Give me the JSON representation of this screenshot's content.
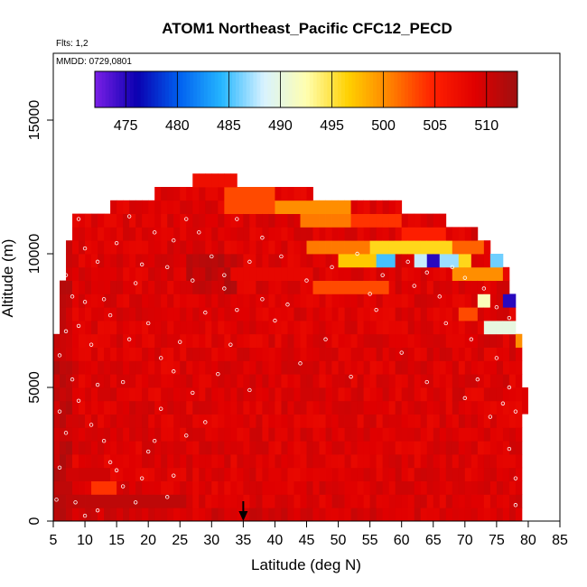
{
  "chart_data": {
    "type": "heatmap",
    "title": "ATOM1 Northeast_Pacific CFC12_PECD",
    "subtitle_flights": "Flts: 1,2",
    "subtitle_dates": "MMDD: 0729,0801",
    "xlabel": "Latitude (deg N)",
    "ylabel": "Altitude (m)",
    "xlim": [
      5,
      85
    ],
    "ylim": [
      0,
      17500
    ],
    "x_ticks": [
      "5",
      "10",
      "15",
      "20",
      "25",
      "30",
      "35",
      "40",
      "45",
      "50",
      "55",
      "60",
      "65",
      "70",
      "75",
      "80",
      "85"
    ],
    "y_ticks": [
      "0",
      "5000",
      "10000",
      "15000"
    ],
    "colorbar": {
      "range": [
        472,
        513
      ],
      "ticks": [
        "475",
        "480",
        "485",
        "490",
        "495",
        "500",
        "505",
        "510"
      ],
      "colors": [
        "#7a1fe6",
        "#0a00b0",
        "#0060f0",
        "#25b6ff",
        "#d8f2ff",
        "#ffffb0",
        "#ffd000",
        "#ff8000",
        "#ff2000",
        "#e00000",
        "#9e1010"
      ]
    },
    "arrow_marker_latitude": 35,
    "base_value": 509,
    "profile": [
      {
        "lat": 5,
        "top": 7000
      },
      {
        "lat": 6,
        "top": 9000
      },
      {
        "lat": 7,
        "top": 10500
      },
      {
        "lat": 7.5,
        "top": 11500
      },
      {
        "lat": 14,
        "top": 12000
      },
      {
        "lat": 20.5,
        "top": 12500
      },
      {
        "lat": 27,
        "top": 13000
      },
      {
        "lat": 32,
        "top": 12700
      },
      {
        "lat": 34,
        "top": 12500
      },
      {
        "lat": 46,
        "top": 12000
      },
      {
        "lat": 60,
        "top": 11500
      },
      {
        "lat": 67,
        "top": 11000
      },
      {
        "lat": 69,
        "top": 10700
      },
      {
        "lat": 72,
        "top": 10300
      },
      {
        "lat": 74,
        "top": 10000
      },
      {
        "lat": 76,
        "top": 9500
      },
      {
        "lat": 77,
        "top": 8500
      },
      {
        "lat": 78,
        "top": 7000
      },
      {
        "lat": 78.5,
        "top": 5000
      },
      {
        "lat": 79,
        "top": 0
      }
    ],
    "anomalies": [
      {
        "lat0": 27,
        "lat1": 34,
        "alt0": 12500,
        "alt1": 13000,
        "value": 507
      },
      {
        "lat0": 32,
        "lat1": 40,
        "alt0": 11500,
        "alt1": 12500,
        "value": 503
      },
      {
        "lat0": 40,
        "lat1": 52,
        "alt0": 11500,
        "alt1": 12000,
        "value": 500
      },
      {
        "lat0": 44,
        "lat1": 52,
        "alt0": 11000,
        "alt1": 11500,
        "value": 501
      },
      {
        "lat0": 52,
        "lat1": 60,
        "alt0": 11000,
        "alt1": 11500,
        "value": 504
      },
      {
        "lat0": 60,
        "lat1": 67,
        "alt0": 10500,
        "alt1": 11000,
        "value": 505
      },
      {
        "lat0": 45,
        "lat1": 55,
        "alt0": 10000,
        "alt1": 10500,
        "value": 501
      },
      {
        "lat0": 55,
        "lat1": 68,
        "alt0": 10000,
        "alt1": 10500,
        "value": 496
      },
      {
        "lat0": 68,
        "lat1": 73,
        "alt0": 10000,
        "alt1": 10500,
        "value": 502
      },
      {
        "lat0": 50,
        "lat1": 56,
        "alt0": 9500,
        "alt1": 10000,
        "value": 497
      },
      {
        "lat0": 56,
        "lat1": 59,
        "alt0": 9500,
        "alt1": 10000,
        "value": 485
      },
      {
        "lat0": 62,
        "lat1": 64,
        "alt0": 9500,
        "alt1": 10000,
        "value": 488
      },
      {
        "lat0": 64,
        "lat1": 66,
        "alt0": 9500,
        "alt1": 10000,
        "value": 475
      },
      {
        "lat0": 66,
        "lat1": 69,
        "alt0": 9500,
        "alt1": 10000,
        "value": 487
      },
      {
        "lat0": 69,
        "lat1": 71,
        "alt0": 9500,
        "alt1": 10000,
        "value": 496
      },
      {
        "lat0": 74,
        "lat1": 76,
        "alt0": 9500,
        "alt1": 10000,
        "value": 486
      },
      {
        "lat0": 68,
        "lat1": 76,
        "alt0": 9000,
        "alt1": 9500,
        "value": 500
      },
      {
        "lat0": 33,
        "lat1": 46,
        "alt0": 9000,
        "alt1": 9500,
        "value": 508
      },
      {
        "lat0": 46,
        "lat1": 58,
        "alt0": 8500,
        "alt1": 9000,
        "value": 503
      },
      {
        "lat0": 72,
        "lat1": 74,
        "alt0": 8000,
        "alt1": 8500,
        "value": 492
      },
      {
        "lat0": 76,
        "lat1": 78,
        "alt0": 8000,
        "alt1": 8500,
        "value": 475
      },
      {
        "lat0": 69,
        "lat1": 72,
        "alt0": 7500,
        "alt1": 8000,
        "value": 503
      },
      {
        "lat0": 73,
        "lat1": 78,
        "alt0": 7000,
        "alt1": 7500,
        "value": 490
      },
      {
        "lat0": 78,
        "lat1": 79,
        "alt0": 6500,
        "alt1": 7000,
        "value": 500
      },
      {
        "lat0": 11,
        "lat1": 15,
        "alt0": 1000,
        "alt1": 1500,
        "value": 504
      },
      {
        "lat0": 9,
        "lat1": 14,
        "alt0": 1500,
        "alt1": 2000,
        "value": 510
      },
      {
        "lat0": 8,
        "lat1": 26,
        "alt0": 500,
        "alt1": 1000,
        "value": 511
      }
    ],
    "sample_points": [
      [
        7,
        9200
      ],
      [
        8,
        8400
      ],
      [
        9,
        11300
      ],
      [
        10,
        10200
      ],
      [
        12,
        9700
      ],
      [
        13,
        8300
      ],
      [
        15,
        10400
      ],
      [
        17,
        11400
      ],
      [
        19,
        9600
      ],
      [
        21,
        10800
      ],
      [
        24,
        10500
      ],
      [
        26,
        11300
      ],
      [
        28,
        10800
      ],
      [
        30,
        9900
      ],
      [
        32,
        9200
      ],
      [
        34,
        11300
      ],
      [
        36,
        9700
      ],
      [
        38,
        10600
      ],
      [
        41,
        9900
      ],
      [
        45,
        9000
      ],
      [
        49,
        9500
      ],
      [
        53,
        10000
      ],
      [
        57,
        9200
      ],
      [
        61,
        9700
      ],
      [
        64,
        9300
      ],
      [
        68,
        9500
      ],
      [
        70,
        9100
      ],
      [
        73,
        8700
      ],
      [
        75,
        8000
      ],
      [
        77,
        7600
      ],
      [
        6,
        6200
      ],
      [
        8,
        5300
      ],
      [
        9,
        4500
      ],
      [
        11,
        3600
      ],
      [
        13,
        3000
      ],
      [
        14,
        2200
      ],
      [
        16,
        1300
      ],
      [
        18,
        700
      ],
      [
        20,
        2600
      ],
      [
        22,
        4200
      ],
      [
        24,
        5600
      ],
      [
        25,
        6700
      ],
      [
        27,
        4800
      ],
      [
        29,
        3700
      ],
      [
        31,
        5500
      ],
      [
        33,
        6600
      ],
      [
        36,
        4900
      ],
      [
        40,
        7500
      ],
      [
        44,
        5900
      ],
      [
        48,
        6800
      ],
      [
        52,
        5400
      ],
      [
        56,
        7900
      ],
      [
        60,
        6300
      ],
      [
        64,
        5200
      ],
      [
        67,
        7400
      ],
      [
        70,
        4600
      ],
      [
        72,
        5300
      ],
      [
        74,
        3900
      ],
      [
        76,
        4400
      ],
      [
        77,
        2700
      ],
      [
        78,
        1600
      ],
      [
        78,
        600
      ],
      [
        5.5,
        800
      ],
      [
        6,
        2000
      ],
      [
        7,
        3300
      ],
      [
        8.5,
        700
      ],
      [
        10,
        200
      ],
      [
        12,
        400
      ],
      [
        15,
        1900
      ],
      [
        19,
        1600
      ],
      [
        21,
        3000
      ],
      [
        23,
        900
      ],
      [
        24,
        1700
      ],
      [
        26,
        3200
      ],
      [
        29,
        7800
      ],
      [
        32,
        8700
      ],
      [
        34,
        7900
      ],
      [
        38,
        8300
      ],
      [
        42,
        8100
      ],
      [
        55,
        8500
      ],
      [
        62,
        8800
      ],
      [
        66,
        8400
      ],
      [
        71,
        6800
      ],
      [
        75,
        6100
      ],
      [
        77,
        5000
      ],
      [
        78,
        4100
      ],
      [
        9,
        7300
      ],
      [
        11,
        6600
      ],
      [
        14,
        7700
      ],
      [
        17,
        6800
      ],
      [
        20,
        7400
      ],
      [
        22,
        6100
      ],
      [
        6,
        4100
      ],
      [
        7,
        7100
      ],
      [
        10,
        8200
      ],
      [
        18,
        8900
      ],
      [
        23,
        9500
      ],
      [
        27,
        9000
      ],
      [
        16,
        5200
      ],
      [
        12,
        5100
      ]
    ]
  }
}
